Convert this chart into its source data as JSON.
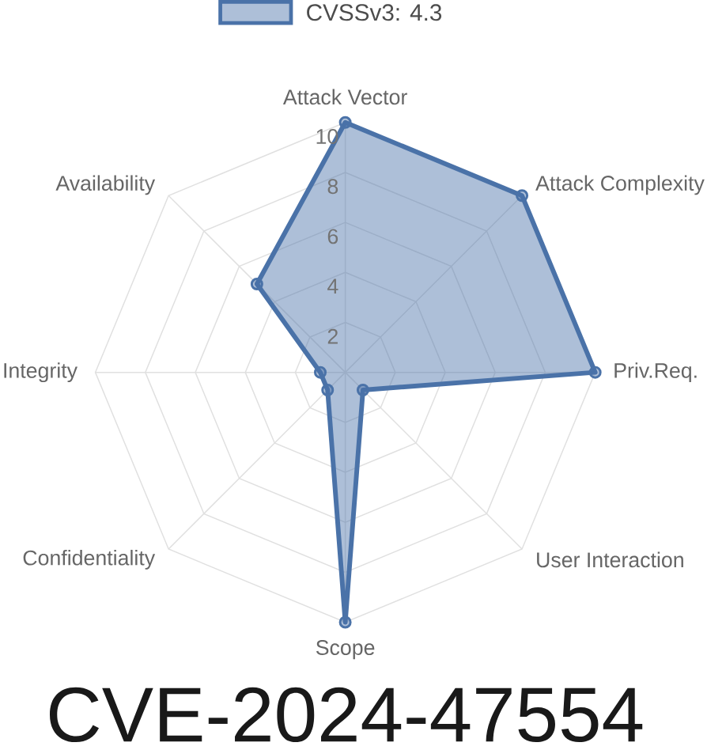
{
  "chart_data": {
    "type": "radar",
    "title": "CVE-2024-47554",
    "categories": [
      "Attack Vector",
      "Attack Complexity",
      "Priv.Req.",
      "User Interaction",
      "Scope",
      "Confidentiality",
      "Integrity",
      "Availability"
    ],
    "series": [
      {
        "name": "CVSSv3: 4.3",
        "color": "#4a72a8",
        "values": [
          10,
          10,
          10,
          1,
          10,
          1,
          1,
          5
        ]
      }
    ],
    "ylim": [
      0,
      10
    ],
    "yticks": [
      2,
      4,
      6,
      8,
      10
    ],
    "legend": "top",
    "grid": true,
    "marker": "circle"
  }
}
